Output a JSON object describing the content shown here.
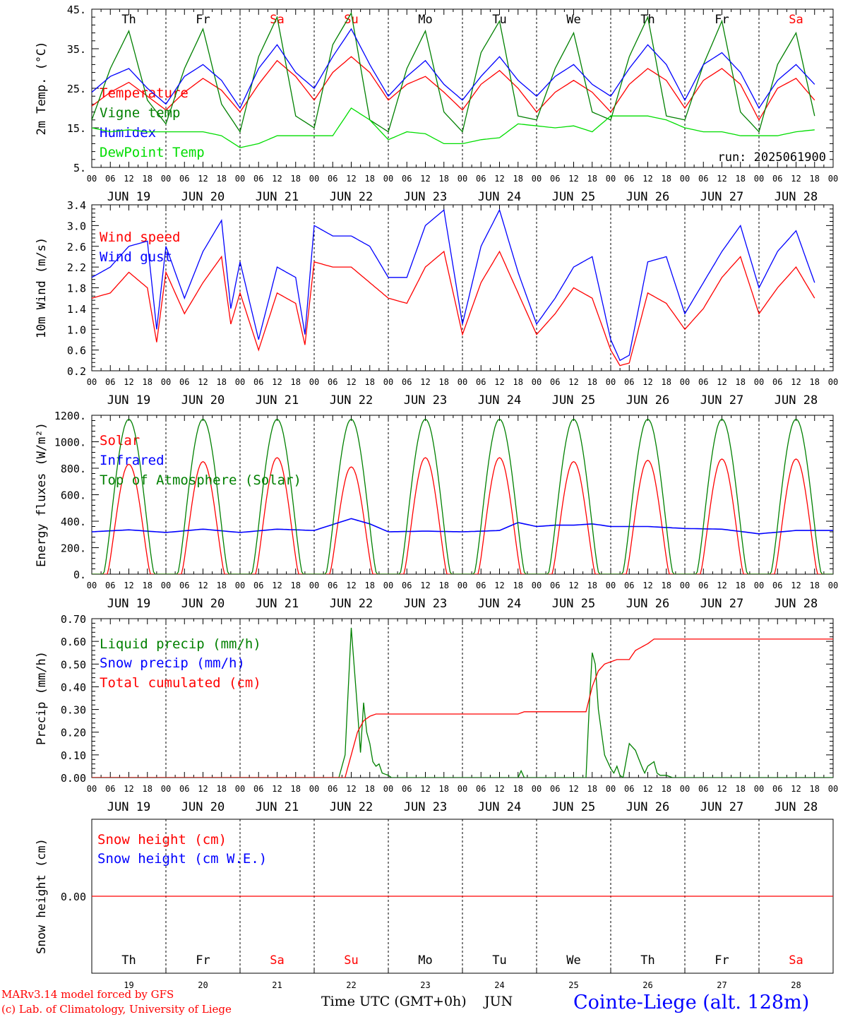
{
  "colors": {
    "red": "#ff0000",
    "green": "#008000",
    "blue": "#0000ff",
    "lightgreen": "#00dd00",
    "black": "#000000"
  },
  "weekdays": [
    "Th",
    "Fr",
    "Sa",
    "Su",
    "Mo",
    "Tu",
    "We",
    "Th",
    "Fr",
    "Sa"
  ],
  "weekend_flags": [
    false,
    false,
    true,
    true,
    false,
    false,
    false,
    false,
    false,
    true
  ],
  "dates": [
    "JUN 19",
    "JUN 20",
    "JUN 21",
    "JUN 22",
    "JUN 23",
    "JUN 24",
    "JUN 25",
    "JUN 26",
    "JUN 27",
    "JUN 28"
  ],
  "hour_labels": [
    "00",
    "06",
    "12",
    "18"
  ],
  "day_numbers": [
    "19",
    "20",
    "21",
    "22",
    "23",
    "24",
    "25",
    "26",
    "27",
    "28"
  ],
  "run_label": "run: 2025061900",
  "footer": {
    "model": "MARv3.14 model forced by GFS",
    "lab": "(c) Lab. of Climatology, University of Liege",
    "xaxis": "Time UTC (GMT+0h)",
    "month": "JUN",
    "station": "Cointe-Liege (alt. 128m)"
  },
  "chart_data": [
    {
      "id": "temp",
      "type": "line",
      "ylabel": "2m Temp. (°C)",
      "ylim": [
        5,
        45
      ],
      "yticks": [
        5,
        15,
        25,
        35,
        45
      ],
      "yticklabels": [
        "5.",
        "15.",
        "25.",
        "35.",
        "45."
      ],
      "series": [
        {
          "name": "Temperature",
          "color": "red",
          "x_hours": [
            0,
            6,
            12,
            18,
            24,
            30,
            36,
            42,
            48,
            54,
            60,
            66,
            72,
            78,
            84,
            90,
            96,
            102,
            108,
            114,
            120,
            126,
            132,
            138,
            144,
            150,
            156,
            162,
            168,
            174,
            180,
            186,
            192,
            198,
            204,
            210,
            216,
            222,
            228,
            234
          ],
          "values": [
            20.5,
            24,
            26.5,
            23,
            19.5,
            24,
            27.5,
            24.5,
            19,
            26,
            32,
            28,
            22,
            29,
            33,
            29,
            22,
            26,
            28,
            24,
            19.5,
            26,
            29.5,
            25,
            19,
            24,
            27,
            24,
            19,
            26,
            30,
            27,
            20,
            27,
            30,
            26,
            17,
            25,
            27.5,
            22
          ]
        },
        {
          "name": "Vigne temp",
          "color": "green",
          "x_hours": [
            0,
            6,
            12,
            18,
            24,
            30,
            36,
            42,
            48,
            54,
            60,
            66,
            72,
            78,
            84,
            90,
            96,
            102,
            108,
            114,
            120,
            126,
            132,
            138,
            144,
            150,
            156,
            162,
            168,
            174,
            180,
            186,
            192,
            198,
            204,
            210,
            216,
            222,
            228,
            234
          ],
          "values": [
            17,
            30,
            39.5,
            22,
            16,
            30,
            40,
            21,
            14,
            33,
            43,
            18,
            15,
            36,
            44,
            17,
            14,
            30,
            39.5,
            19,
            14,
            34,
            42,
            18,
            17,
            30,
            39,
            19,
            17,
            33,
            43,
            18,
            17,
            31,
            42,
            19,
            14,
            31,
            39,
            18
          ]
        },
        {
          "name": "Humidex",
          "color": "blue",
          "x_hours": [
            0,
            6,
            12,
            18,
            24,
            30,
            36,
            42,
            48,
            54,
            60,
            66,
            72,
            78,
            84,
            90,
            96,
            102,
            108,
            114,
            120,
            126,
            132,
            138,
            144,
            150,
            156,
            162,
            168,
            174,
            180,
            186,
            192,
            198,
            204,
            210,
            216,
            222,
            228,
            234
          ],
          "values": [
            24,
            28,
            30,
            25,
            21,
            28,
            31,
            27,
            20,
            30,
            36,
            29,
            25,
            33,
            40,
            31,
            23,
            28,
            32,
            26,
            22,
            28,
            33,
            27,
            23,
            28,
            31,
            26,
            23,
            30,
            36,
            31,
            22,
            31,
            34,
            29,
            20,
            27,
            31,
            26
          ]
        },
        {
          "name": "DewPoint Temp",
          "color": "lightgreen",
          "x_hours": [
            0,
            6,
            12,
            18,
            24,
            30,
            36,
            42,
            48,
            54,
            60,
            66,
            72,
            78,
            84,
            90,
            96,
            102,
            108,
            114,
            120,
            126,
            132,
            138,
            144,
            150,
            156,
            162,
            168,
            174,
            180,
            186,
            192,
            198,
            204,
            210,
            216,
            222,
            228,
            234
          ],
          "values": [
            15,
            14,
            14.5,
            14,
            14,
            14,
            14,
            13,
            10,
            11,
            13,
            13,
            13,
            13,
            20,
            17,
            12,
            14,
            13.5,
            11,
            11,
            12,
            12.5,
            16,
            15.5,
            15,
            15.5,
            14,
            18,
            18,
            18,
            17,
            15,
            14,
            14,
            13,
            13,
            13,
            14,
            14.5
          ]
        }
      ]
    },
    {
      "id": "wind",
      "type": "line",
      "ylabel": "10m Wind (m/s)",
      "ylim": [
        0.2,
        3.4
      ],
      "yticks": [
        0.2,
        0.6,
        1.0,
        1.4,
        1.8,
        2.2,
        2.6,
        3.0,
        3.4
      ],
      "yticklabels": [
        "0.2",
        "0.6",
        "1.0",
        "1.4",
        "1.8",
        "2.2",
        "2.6",
        "3.0",
        "3.4"
      ],
      "series": [
        {
          "name": "Wind speed",
          "color": "red",
          "x_hours": [
            0,
            6,
            12,
            18,
            21,
            24,
            30,
            36,
            42,
            45,
            48,
            54,
            60,
            66,
            69,
            72,
            78,
            84,
            90,
            96,
            102,
            108,
            114,
            120,
            126,
            132,
            138,
            144,
            150,
            156,
            162,
            168,
            171,
            174,
            180,
            186,
            192,
            198,
            204,
            210,
            216,
            222,
            228,
            234
          ],
          "values": [
            1.6,
            1.7,
            2.1,
            1.8,
            0.75,
            2.1,
            1.3,
            1.9,
            2.4,
            1.1,
            1.7,
            0.6,
            1.7,
            1.5,
            0.7,
            2.3,
            2.2,
            2.2,
            1.9,
            1.6,
            1.5,
            2.2,
            2.5,
            0.9,
            1.9,
            2.5,
            1.7,
            0.9,
            1.3,
            1.8,
            1.6,
            0.6,
            0.3,
            0.35,
            1.7,
            1.5,
            1.0,
            1.4,
            2.0,
            2.4,
            1.3,
            1.8,
            2.2,
            1.6
          ]
        },
        {
          "name": "Wind gust",
          "color": "blue",
          "x_hours": [
            0,
            6,
            12,
            18,
            21,
            24,
            30,
            36,
            42,
            45,
            48,
            54,
            60,
            66,
            69,
            72,
            78,
            84,
            90,
            96,
            102,
            108,
            114,
            120,
            126,
            132,
            138,
            144,
            150,
            156,
            162,
            168,
            171,
            174,
            180,
            186,
            192,
            198,
            204,
            210,
            216,
            222,
            228,
            234
          ],
          "values": [
            2.0,
            2.2,
            2.6,
            2.7,
            1.0,
            2.6,
            1.6,
            2.5,
            3.1,
            1.4,
            2.3,
            0.8,
            2.2,
            2.0,
            0.9,
            3.0,
            2.8,
            2.8,
            2.6,
            2.0,
            2.0,
            3.0,
            3.3,
            1.1,
            2.6,
            3.3,
            2.1,
            1.1,
            1.6,
            2.2,
            2.4,
            0.8,
            0.4,
            0.5,
            2.3,
            2.4,
            1.3,
            1.9,
            2.5,
            3.0,
            1.8,
            2.5,
            2.9,
            1.9
          ]
        }
      ]
    },
    {
      "id": "energy",
      "type": "line",
      "ylabel": "Energy fluxes (W/m²)",
      "ylim": [
        0,
        1200
      ],
      "yticks": [
        0,
        200,
        400,
        600,
        800,
        1000,
        1200
      ],
      "yticklabels": [
        "0.",
        "200.",
        "400.",
        "600.",
        "800.",
        "1000.",
        "1200."
      ],
      "series": [
        {
          "name": "Solar",
          "color": "red",
          "daily_peaks": [
            830,
            850,
            880,
            810,
            880,
            880,
            850,
            860,
            870,
            870
          ]
        },
        {
          "name": "Infrared",
          "color": "blue",
          "x_hours": [
            0,
            12,
            24,
            36,
            48,
            60,
            72,
            84,
            90,
            96,
            108,
            120,
            132,
            138,
            144,
            150,
            156,
            162,
            168,
            180,
            192,
            204,
            216,
            228,
            240
          ],
          "values": [
            320,
            335,
            315,
            340,
            315,
            340,
            330,
            420,
            380,
            320,
            325,
            320,
            330,
            390,
            360,
            370,
            370,
            380,
            360,
            360,
            345,
            340,
            305,
            330,
            330
          ]
        },
        {
          "name": "Top of Atmosphere (Solar)",
          "color": "green",
          "daily_peaks": [
            1170,
            1170,
            1170,
            1170,
            1170,
            1170,
            1170,
            1170,
            1170,
            1170
          ]
        }
      ]
    },
    {
      "id": "precip",
      "type": "line",
      "ylabel": "Precip (mm/h)",
      "ylim": [
        0,
        0.7
      ],
      "yticks": [
        0,
        0.1,
        0.2,
        0.3,
        0.4,
        0.5,
        0.6,
        0.7
      ],
      "yticklabels": [
        "0.00",
        "0.10",
        "0.20",
        "0.30",
        "0.40",
        "0.50",
        "0.60",
        "0.70"
      ],
      "series": [
        {
          "name": "Liquid precip (mm/h)",
          "color": "green",
          "x_hours": [
            0,
            80,
            82,
            84,
            86,
            87,
            88,
            89,
            90,
            91,
            92,
            93,
            94,
            96,
            97,
            98,
            100,
            138,
            139,
            140,
            160,
            161,
            162,
            163,
            164,
            165,
            166,
            167,
            168,
            169,
            170,
            171,
            172,
            174,
            176,
            178,
            179,
            180,
            182,
            183,
            184,
            186,
            188,
            189,
            190,
            240
          ],
          "values": [
            0,
            0,
            0.1,
            0.66,
            0.3,
            0.11,
            0.33,
            0.2,
            0.15,
            0.07,
            0.05,
            0.06,
            0.02,
            0.01,
            0,
            0,
            0,
            0,
            0.03,
            0,
            0,
            0.3,
            0.55,
            0.5,
            0.3,
            0.2,
            0.1,
            0.07,
            0.04,
            0.02,
            0.05,
            0.01,
            0,
            0.15,
            0.12,
            0.05,
            0.02,
            0.05,
            0.07,
            0.02,
            0.01,
            0.01,
            0,
            0,
            0,
            0
          ]
        },
        {
          "name": "Snow precip (mm/h)",
          "color": "blue",
          "values": []
        },
        {
          "name": "Total cumulated (cm)",
          "color": "red",
          "x_hours": [
            0,
            82,
            84,
            86,
            88,
            90,
            92,
            96,
            138,
            140,
            160,
            162,
            164,
            166,
            168,
            170,
            174,
            176,
            180,
            182,
            240
          ],
          "values": [
            0,
            0,
            0.1,
            0.2,
            0.25,
            0.27,
            0.28,
            0.28,
            0.28,
            0.29,
            0.29,
            0.4,
            0.47,
            0.5,
            0.51,
            0.52,
            0.52,
            0.56,
            0.59,
            0.61,
            0.61
          ]
        }
      ]
    },
    {
      "id": "snow",
      "type": "line",
      "ylabel": "Snow height (cm)",
      "ylim": [
        -1,
        1
      ],
      "yticks": [
        0
      ],
      "yticklabels": [
        "0.00"
      ],
      "series": [
        {
          "name": "Snow height (cm)",
          "color": "red",
          "values": [
            0,
            0
          ]
        },
        {
          "name": "Snow height (cm W.E.)",
          "color": "blue",
          "values": []
        }
      ]
    }
  ]
}
